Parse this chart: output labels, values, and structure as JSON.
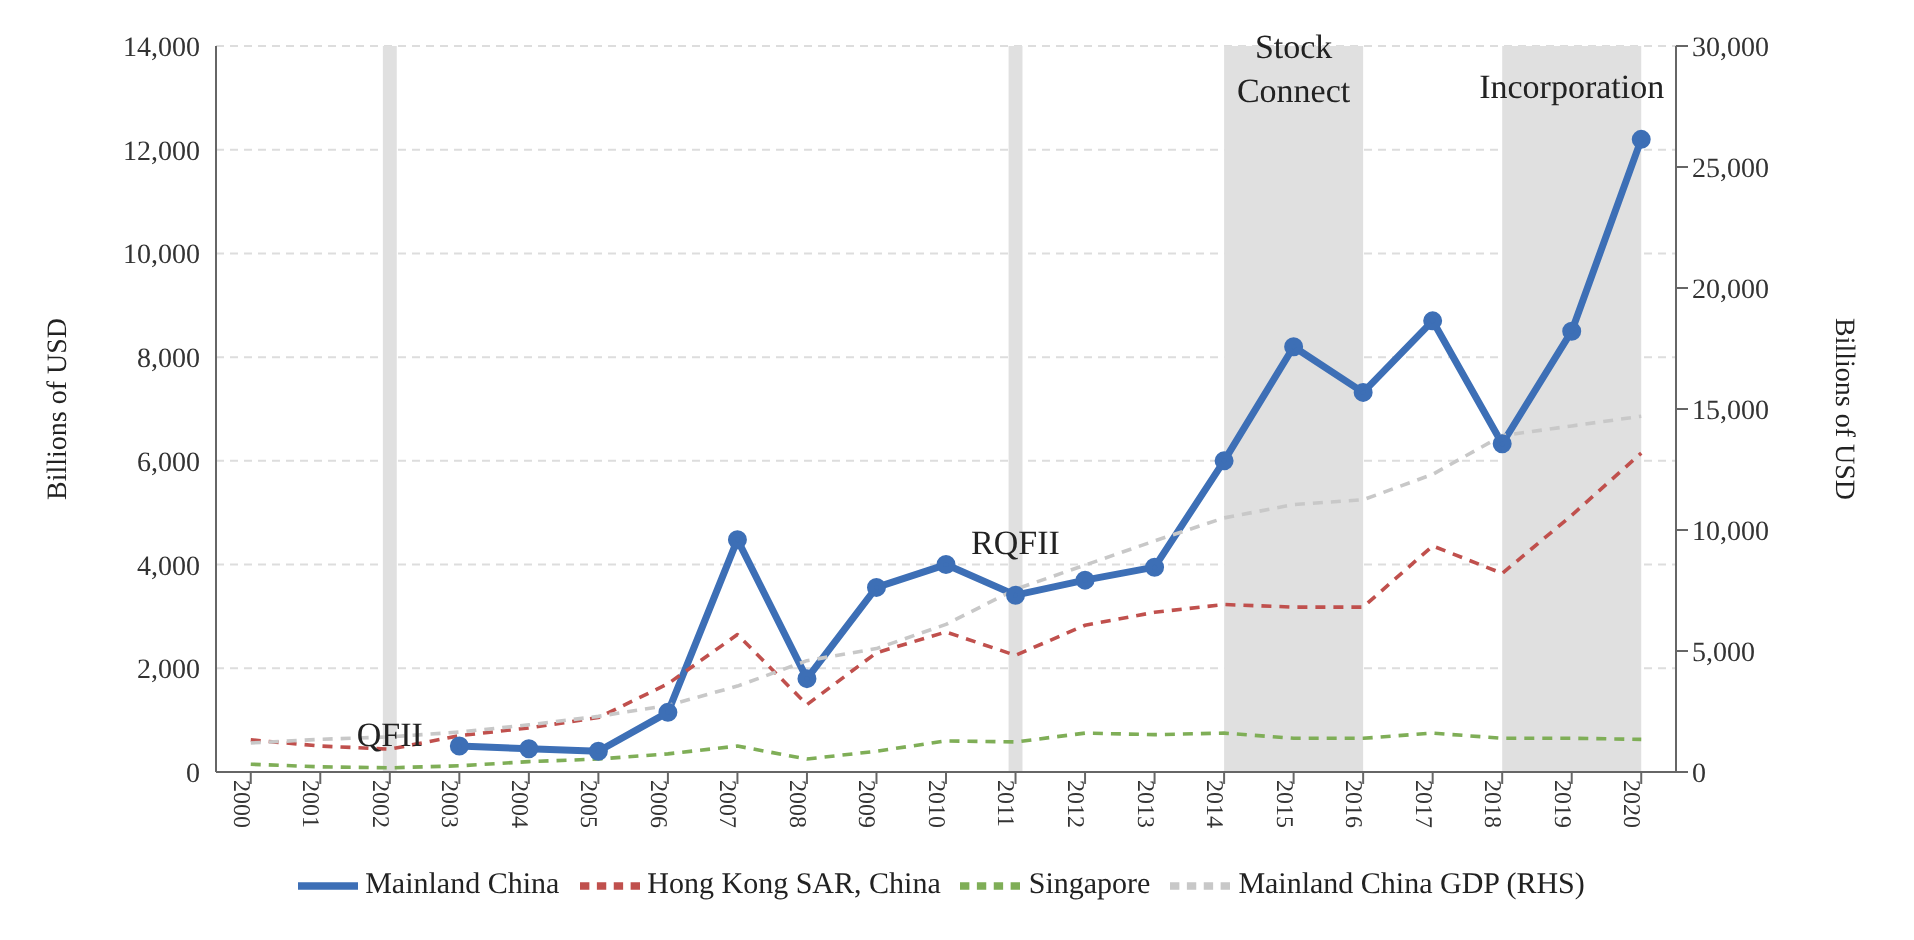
{
  "chart_data": {
    "type": "line",
    "x": [
      2000,
      2001,
      2002,
      2003,
      2004,
      2005,
      2006,
      2007,
      2008,
      2009,
      2010,
      2011,
      2012,
      2013,
      2014,
      2015,
      2016,
      2017,
      2018,
      2019,
      2020
    ],
    "series": [
      {
        "name": "Mainland China",
        "color": "#3d6fb6",
        "marker": "circle",
        "line_style": "solid",
        "values": [
          null,
          null,
          null,
          500,
          450,
          400,
          1150,
          4480,
          1800,
          3560,
          4000,
          3410,
          3700,
          3950,
          6000,
          8200,
          7320,
          8700,
          6330,
          8500,
          12200
        ]
      },
      {
        "name": "Hong Kong SAR, China",
        "color": "#c0504d",
        "marker": "none",
        "line_style": "dashed",
        "values": [
          620,
          500,
          440,
          700,
          850,
          1050,
          1700,
          2650,
          1300,
          2300,
          2700,
          2250,
          2830,
          3080,
          3230,
          3180,
          3180,
          4360,
          3830,
          4950,
          6150
        ]
      },
      {
        "name": "Singapore",
        "color": "#7fae57",
        "marker": "none",
        "line_style": "dashed",
        "values": [
          150,
          100,
          80,
          120,
          200,
          250,
          350,
          500,
          250,
          400,
          600,
          580,
          750,
          720,
          750,
          650,
          650,
          750,
          650,
          650,
          630
        ]
      },
      {
        "name": "Mainland China GDP (RHS)",
        "color": "#c8c8c8",
        "marker": "none",
        "line_style": "dashed",
        "axis": "y2",
        "values": [
          1200,
          1350,
          1450,
          1650,
          1950,
          2300,
          2750,
          3550,
          4600,
          5100,
          6100,
          7550,
          8550,
          9550,
          10500,
          11050,
          11250,
          12300,
          13900,
          14300,
          14700
        ]
      }
    ],
    "xlim": [
      1999.5,
      2020.5
    ],
    "xticks": [
      2000,
      2001,
      2002,
      2003,
      2004,
      2005,
      2006,
      2007,
      2008,
      2009,
      2010,
      2011,
      2012,
      2013,
      2014,
      2015,
      2016,
      2017,
      2018,
      2019,
      2020
    ],
    "ylim": [
      0,
      14000
    ],
    "yticks": [
      0,
      {
        "value": 2000,
        "label": "2,000"
      },
      {
        "value": 4000,
        "label": "4,000"
      },
      {
        "value": 6000,
        "label": "6,000"
      },
      {
        "value": 8000,
        "label": "8,000"
      },
      {
        "value": 10000,
        "label": "10,000"
      },
      {
        "value": 12000,
        "label": "12,000"
      },
      {
        "value": 14000,
        "label": "14,000"
      }
    ],
    "y2lim": [
      0,
      30000
    ],
    "y2ticks": [
      0,
      {
        "value": 5000,
        "label": "5,000"
      },
      {
        "value": 10000,
        "label": "10,000"
      },
      {
        "value": 15000,
        "label": "15,000"
      },
      {
        "value": 20000,
        "label": "20,000"
      },
      {
        "value": 25000,
        "label": "25,000"
      },
      {
        "value": 30000,
        "label": "30,000"
      }
    ],
    "ylabel": "Billions of USD",
    "y2label": "Billions of USD",
    "bands": [
      {
        "axis": "x",
        "from": 2001.9,
        "to": 2002.1,
        "color": "#e0e0e0"
      },
      {
        "axis": "x",
        "from": 2010.9,
        "to": 2011.1,
        "color": "#e0e0e0"
      },
      {
        "axis": "x",
        "from": 2014,
        "to": 2016,
        "color": "#e0e0e0",
        "label": "Stock\nConnect"
      },
      {
        "axis": "x",
        "from": 2018,
        "to": 2020,
        "color": "#e0e0e0",
        "label": "Incorporation"
      }
    ],
    "annotations": [
      {
        "text": "QFII",
        "x": 2002,
        "y": 500
      },
      {
        "text": "RQFII",
        "x": 2011,
        "y": 4200
      }
    ],
    "grid": "y",
    "legend": "bottom"
  }
}
